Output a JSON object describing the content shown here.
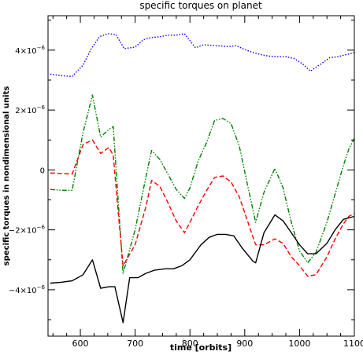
{
  "chart_data": {
    "type": "line",
    "title": "specific torques on planet",
    "xlabel": "time [orbits]",
    "ylabel": "specific torques in nondimensional units",
    "xlim": [
      541,
      1100
    ],
    "ylim": [
      -5.55e-06,
      5.15e-06
    ],
    "x_ticks": [
      600,
      700,
      800,
      900,
      1000,
      1100
    ],
    "x_tick_labels": [
      "600",
      "700",
      "800",
      "900",
      "1000",
      "1100"
    ],
    "y_ticks": [
      4e-06,
      2e-06,
      0,
      -2e-06,
      -4e-06
    ],
    "y_tick_labels": [
      {
        "mant": "4×10",
        "exp": "−6"
      },
      {
        "mant": "2×10",
        "exp": "−6"
      },
      {
        "mant": "0",
        "exp": ""
      },
      {
        "mant": "−2×10",
        "exp": "−6"
      },
      {
        "mant": "−4×10",
        "exp": "−6"
      }
    ],
    "grid": false,
    "legend": "none",
    "series": [
      {
        "color": "#0000ff",
        "style": "dotted",
        "x": [
          545,
          565,
          585,
          605,
          620,
          635,
          650,
          665,
          680,
          700,
          715,
          730,
          745,
          760,
          775,
          790,
          810,
          825,
          840,
          855,
          870,
          885,
          900,
          915,
          930,
          945,
          960,
          975,
          990,
          1005,
          1020,
          1040,
          1055,
          1070,
          1085,
          1100
        ],
        "y": [
          3.2e-06,
          3.15e-06,
          3.12e-06,
          3.5e-06,
          4.05e-06,
          4.45e-06,
          4.55e-06,
          4.52e-06,
          4.05e-06,
          4.1e-06,
          4.35e-06,
          4.42e-06,
          4.45e-06,
          4.5e-06,
          4.5e-06,
          4.55e-06,
          4.08e-06,
          4.18e-06,
          4.16e-06,
          4.14e-06,
          4.12e-06,
          4.15e-06,
          4.02e-06,
          3.92e-06,
          3.85e-06,
          3.8e-06,
          3.78e-06,
          3.78e-06,
          3.72e-06,
          3.55e-06,
          3.3e-06,
          3.55e-06,
          3.75e-06,
          3.78e-06,
          3.85e-06,
          3.92e-06
        ]
      },
      {
        "color": "#008000",
        "style": "dashdotdot",
        "x": [
          545,
          565,
          585,
          605,
          622,
          637,
          652,
          660,
          670,
          678,
          700,
          720,
          730,
          745,
          760,
          775,
          790,
          800,
          815,
          830,
          845,
          860,
          875,
          890,
          905,
          920,
          935,
          955,
          970,
          985,
          1000,
          1015,
          1030,
          1050,
          1065,
          1080,
          1090,
          1100
        ],
        "y": [
          -6.5e-07,
          -6.8e-07,
          -6.8e-07,
          1.25e-06,
          2.5e-06,
          1.1e-06,
          1.35e-06,
          1.45e-06,
          -1.3e-06,
          -3.45e-06,
          -2e-06,
          -2e-07,
          6.5e-07,
          3.5e-07,
          -1.5e-07,
          -6.5e-07,
          -9.5e-07,
          -6e-07,
          3e-07,
          9e-07,
          1.65e-06,
          1.72e-06,
          1.55e-06,
          8e-07,
          -5e-07,
          -1.75e-06,
          -7.5e-07,
          5e-08,
          -6e-07,
          -1.75e-06,
          -2.7e-06,
          -3.1e-06,
          -2.75e-06,
          -1.75e-06,
          -8e-07,
          1.5e-07,
          7e-07,
          1.05e-06
        ]
      },
      {
        "color": "#ff0000",
        "style": "dashed",
        "x": [
          545,
          565,
          585,
          605,
          622,
          637,
          652,
          660,
          670,
          678,
          700,
          720,
          730,
          745,
          760,
          775,
          790,
          800,
          815,
          830,
          845,
          860,
          875,
          890,
          905,
          920,
          935,
          955,
          970,
          985,
          1000,
          1015,
          1030,
          1050,
          1065,
          1080,
          1090,
          1100
        ],
        "y": [
          -1e-07,
          -1.2e-07,
          -1.4e-07,
          8.5e-07,
          1e-06,
          5.5e-07,
          7.5e-07,
          5e-07,
          -1.6e-06,
          -3.2e-06,
          -2.5e-06,
          -1.2e-06,
          -3.5e-07,
          -5.5e-07,
          -1.1e-06,
          -1.7e-06,
          -2.1e-06,
          -1.75e-06,
          -1.2e-06,
          -7e-07,
          -2.5e-07,
          -2e-07,
          -4e-07,
          -9e-07,
          -1.7e-06,
          -2.5e-06,
          -2.5e-06,
          -2.3e-06,
          -2.45e-06,
          -2.9e-06,
          -3.2e-06,
          -3.55e-06,
          -3.5e-06,
          -2.9e-06,
          -2.3e-06,
          -1.8e-06,
          -1.55e-06,
          -1.45e-06
        ]
      },
      {
        "color": "#000000",
        "style": "solid",
        "x": [
          545,
          565,
          585,
          605,
          622,
          637,
          652,
          663,
          678,
          690,
          705,
          720,
          735,
          755,
          770,
          785,
          800,
          820,
          835,
          850,
          865,
          880,
          895,
          915,
          920,
          935,
          955,
          970,
          985,
          1000,
          1015,
          1030,
          1050,
          1065,
          1080,
          1100
        ],
        "y": [
          -3.78e-06,
          -3.75e-06,
          -3.7e-06,
          -3.5e-06,
          -3e-06,
          -3.95e-06,
          -3.9e-06,
          -3.9e-06,
          -5.1e-06,
          -3.6e-06,
          -3.6e-06,
          -3.45e-06,
          -3.35e-06,
          -3.3e-06,
          -3.3e-06,
          -3.2e-06,
          -3e-06,
          -2.5e-06,
          -2.25e-06,
          -2.15e-06,
          -2.15e-06,
          -2.2e-06,
          -2.6e-06,
          -3.05e-06,
          -3.1e-06,
          -2.1e-06,
          -1.5e-06,
          -1.7e-06,
          -2.1e-06,
          -2.5e-06,
          -2.8e-06,
          -2.8e-06,
          -2.45e-06,
          -2e-06,
          -1.65e-06,
          -1.55e-06
        ]
      }
    ]
  }
}
